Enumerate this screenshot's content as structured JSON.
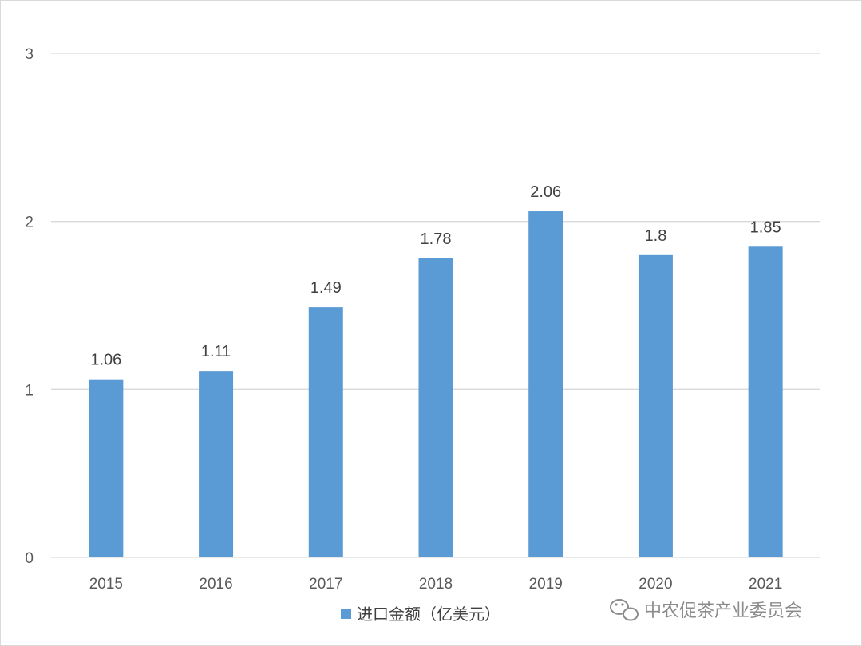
{
  "chart_data": {
    "type": "bar",
    "categories": [
      "2015",
      "2016",
      "2017",
      "2018",
      "2019",
      "2020",
      "2021"
    ],
    "series": [
      {
        "name": "进口金额（亿美元）",
        "values": [
          1.06,
          1.11,
          1.49,
          1.78,
          2.06,
          1.8,
          1.85
        ],
        "data_labels": [
          "1.06",
          "1.11",
          "1.49",
          "1.78",
          "2.06",
          "1.8",
          "1.85"
        ]
      }
    ],
    "y_ticks": [
      "0",
      "1",
      "2",
      "3"
    ],
    "ylim": [
      0,
      3
    ],
    "grid": true,
    "legend": "bottom",
    "bar_color": "#5b9bd5",
    "grid_color": "#d9d9d9"
  },
  "watermark": {
    "text": "中农促茶产业委员会",
    "icon": "wechat-icon"
  }
}
